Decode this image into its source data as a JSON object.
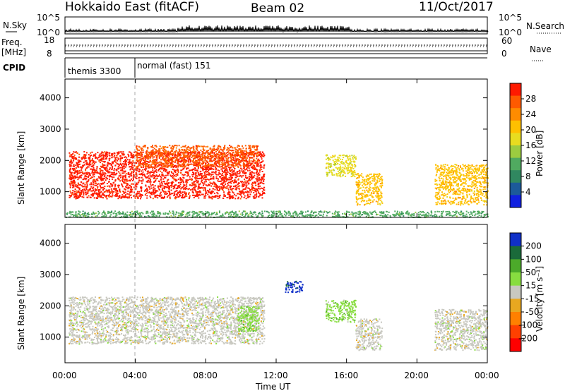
{
  "header": {
    "site": "Hokkaido East (fitACF)",
    "beam": "Beam 02",
    "date": "11/Oct/2017"
  },
  "panels": {
    "nsky_label": "N.Sky",
    "nsearch_label": "N.Search",
    "freq_label": "Freq.",
    "freq_unit": "[MHz]",
    "nave_label": "Nave",
    "cpid_label": "CPID",
    "cpid_segments": [
      {
        "label": "themis 3300",
        "start_hour": 0.0
      },
      {
        "label": "normal (fast) 151",
        "start_hour": 4.0
      }
    ],
    "nsky_ticks": [
      "10^5",
      "10^0"
    ],
    "nsearch_ticks": [
      "10^5",
      "10^0"
    ],
    "freq_ticks": [
      "18",
      "8"
    ],
    "nave_ticks": [
      "60",
      "0"
    ]
  },
  "colorbars": {
    "power": {
      "label": "Power [dB]",
      "ticks": [
        "28",
        "24",
        "20",
        "16",
        "12",
        "8",
        "4"
      ],
      "colors": [
        "#ff1a00",
        "#ff5a00",
        "#ff8c00",
        "#ffc000",
        "#e8dc20",
        "#9ccc40",
        "#50aa60",
        "#308860",
        "#1c5a9a",
        "#1020e0"
      ]
    },
    "velocity": {
      "label": "Velocity [m s⁻¹]",
      "ticks": [
        "200",
        "100",
        "50",
        "15",
        "-15",
        "-50",
        "-100",
        "-200"
      ],
      "colors": [
        "#1030c8",
        "#1a6a3a",
        "#4caa2a",
        "#88dd40",
        "#c8c8c0",
        "#e8a820",
        "#ff8000",
        "#ff4000",
        "#ff0000"
      ]
    }
  },
  "axes": {
    "ylabel": "Slant Range [km]",
    "xlabel": "Time UT",
    "yticks": [
      "4000",
      "3000",
      "2000",
      "1000"
    ],
    "xticks": [
      "00:00",
      "04:00",
      "08:00",
      "12:00",
      "16:00",
      "20:00",
      "00:00"
    ]
  },
  "chart_data": [
    {
      "type": "heatmap",
      "quantity": "Power",
      "unit": "dB",
      "x_range_hours": [
        0,
        24
      ],
      "y_range_km": [
        180,
        4600
      ],
      "color_range": [
        0,
        32
      ],
      "features": [
        {
          "t_start": 0.2,
          "t_end": 11.3,
          "r_min": 800,
          "r_max": 2300,
          "power": 30
        },
        {
          "t_start": 4.0,
          "t_end": 11.0,
          "r_min": 1800,
          "r_max": 2500,
          "power": 26
        },
        {
          "t_start": 14.8,
          "t_end": 16.5,
          "r_min": 1500,
          "r_max": 2200,
          "power": 18
        },
        {
          "t_start": 16.5,
          "t_end": 18.0,
          "r_min": 600,
          "r_max": 1600,
          "power": 22
        },
        {
          "t_start": 21.0,
          "t_end": 24.0,
          "r_min": 600,
          "r_max": 1900,
          "power": 20
        },
        {
          "t_start": 0.0,
          "t_end": 24.0,
          "r_min": 200,
          "r_max": 400,
          "power": 10
        }
      ]
    },
    {
      "type": "heatmap",
      "quantity": "Velocity",
      "unit": "m s-1",
      "x_range_hours": [
        0,
        24
      ],
      "y_range_km": [
        180,
        4600
      ],
      "color_range": [
        -250,
        250
      ],
      "features": [
        {
          "t_start": 0.2,
          "t_end": 11.3,
          "r_min": 800,
          "r_max": 2300,
          "velocity": 0
        },
        {
          "t_start": 9.8,
          "t_end": 11.0,
          "r_min": 1200,
          "r_max": 2000,
          "velocity": 60
        },
        {
          "t_start": 12.5,
          "t_end": 13.5,
          "r_min": 2450,
          "r_max": 2800,
          "velocity": 240
        },
        {
          "t_start": 14.8,
          "t_end": 16.5,
          "r_min": 1500,
          "r_max": 2200,
          "velocity": 40
        },
        {
          "t_start": 16.5,
          "t_end": 18.0,
          "r_min": 600,
          "r_max": 1600,
          "velocity": 0
        },
        {
          "t_start": 21.0,
          "t_end": 24.0,
          "r_min": 600,
          "r_max": 1900,
          "velocity": 0
        }
      ]
    }
  ]
}
